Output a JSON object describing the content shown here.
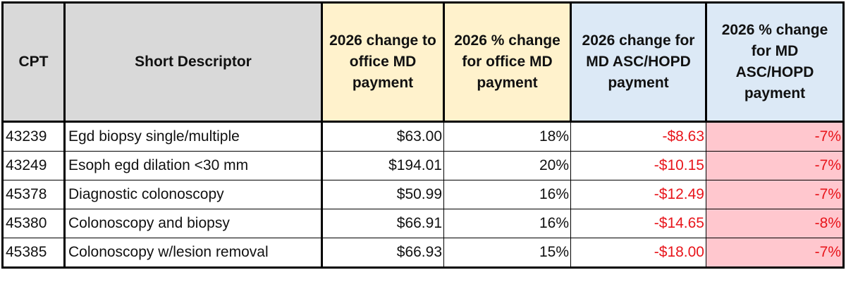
{
  "headers": {
    "cpt": "CPT",
    "desc": "Short Descriptor",
    "office_change": "2026 change to office MD payment",
    "office_pct": "2026 % change for office MD payment",
    "asc_change": "2026 change for MD ASC/HOPD payment",
    "asc_pct": "2026 % change for MD ASC/HOPD payment"
  },
  "rows": [
    {
      "cpt": "43239",
      "desc": "Egd biopsy single/multiple",
      "office_change": "$63.00",
      "office_pct": "18%",
      "asc_change": "-$8.63",
      "asc_pct": "-7%"
    },
    {
      "cpt": "43249",
      "desc": "Esoph egd dilation <30 mm",
      "office_change": "$194.01",
      "office_pct": "20%",
      "asc_change": "-$10.15",
      "asc_pct": "-7%"
    },
    {
      "cpt": "45378",
      "desc": "Diagnostic colonoscopy",
      "office_change": "$50.99",
      "office_pct": "16%",
      "asc_change": "-$12.49",
      "asc_pct": "-7%"
    },
    {
      "cpt": "45380",
      "desc": "Colonoscopy and biopsy",
      "office_change": "$66.91",
      "office_pct": "16%",
      "asc_change": "-$14.65",
      "asc_pct": "-8%"
    },
    {
      "cpt": "45385",
      "desc": "Colonoscopy w/lesion removal",
      "office_change": "$66.93",
      "office_pct": "15%",
      "asc_change": "-$18.00",
      "asc_pct": "-7%"
    }
  ],
  "colors": {
    "header_grey": "#d9d9d9",
    "header_yellow": "#fff2cc",
    "header_blue": "#dce9f6",
    "negative_text": "#e8151b",
    "negative_fill": "#ffc7ce"
  }
}
